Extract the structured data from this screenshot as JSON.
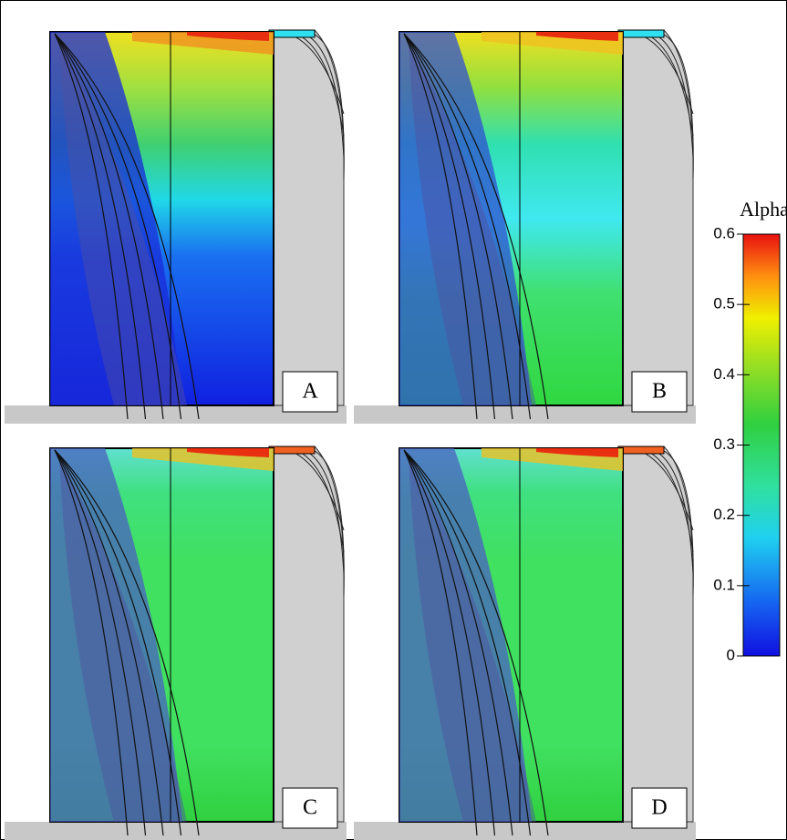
{
  "panels": [
    {
      "label": "A"
    },
    {
      "label": "B"
    },
    {
      "label": "C"
    },
    {
      "label": "D"
    }
  ],
  "colorbar": {
    "title": "Alpha",
    "range": [
      0,
      0.6
    ],
    "ticks": [
      0,
      0.1,
      0.2,
      0.3,
      0.4,
      0.5,
      0.6
    ]
  }
}
